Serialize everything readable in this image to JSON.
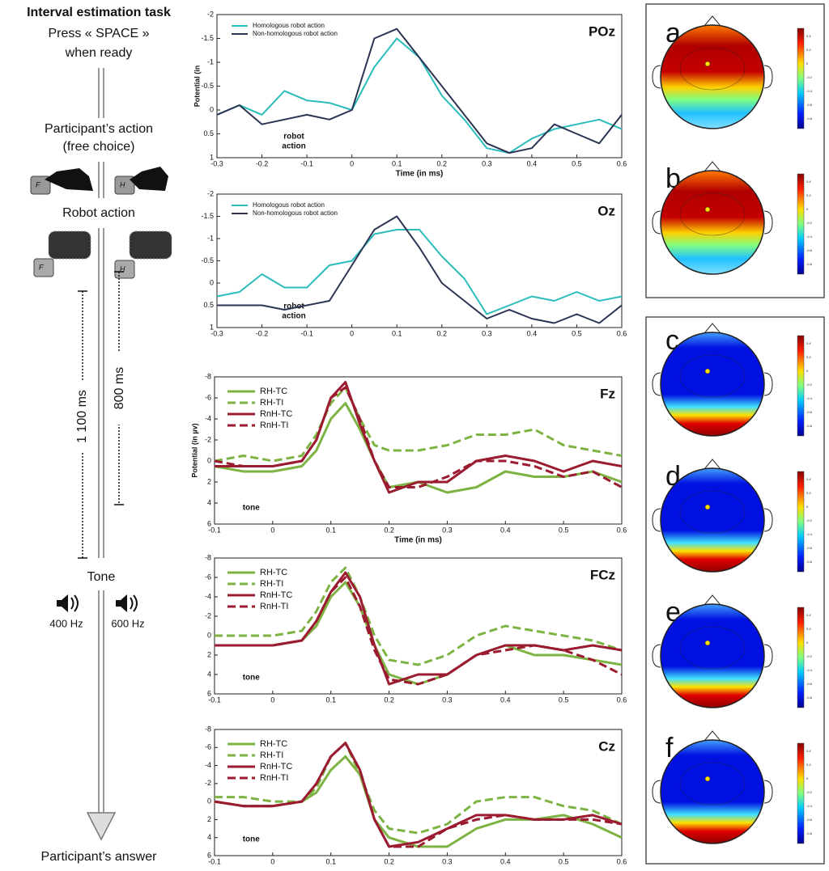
{
  "protocol": {
    "title": "Interval estimation task",
    "start": [
      "Press « SPACE »",
      "when ready"
    ],
    "action": [
      "Participant’s action",
      "(free choice)"
    ],
    "robot": "Robot action",
    "keys": [
      "F",
      "H"
    ],
    "durations": [
      "1 100 ms",
      "800 ms"
    ],
    "tone": "Tone",
    "frequencies": [
      "400 Hz",
      "600 Hz"
    ],
    "answer": "Participant’s answer"
  },
  "chart_data": [
    {
      "type": "line",
      "channel": "POz",
      "ylabel": "Potential (in",
      "xlabel": "Time (in ms)",
      "annotation": [
        "robot",
        "action"
      ],
      "y_inverted": true,
      "x": [
        -0.3,
        -0.25,
        -0.2,
        -0.15,
        -0.1,
        -0.05,
        0,
        0.05,
        0.1,
        0.15,
        0.2,
        0.25,
        0.3,
        0.35,
        0.4,
        0.45,
        0.5,
        0.55,
        0.6
      ],
      "xlim": [
        -0.3,
        0.6
      ],
      "xticks": [
        -0.3,
        -0.2,
        -0.1,
        0,
        0.1,
        0.2,
        0.3,
        0.4,
        0.5,
        0.6
      ],
      "ylim": [
        -2,
        1
      ],
      "yticks": [
        -2,
        -1.5,
        -1,
        -0.5,
        0,
        0.5,
        1
      ],
      "series": [
        {
          "name": "Homologous robot action",
          "color": "#2bbcbc",
          "dashed": false,
          "values": [
            0.1,
            -0.1,
            0.1,
            -0.4,
            -0.2,
            -0.15,
            0,
            -0.9,
            -1.5,
            -1.1,
            -0.3,
            0.2,
            0.8,
            0.9,
            0.6,
            0.4,
            0.3,
            0.2,
            0.4
          ]
        },
        {
          "name": "Non-homologous robot action",
          "color": "#2b3553",
          "dashed": false,
          "values": [
            0.1,
            -0.1,
            0.3,
            0.2,
            0.1,
            0.2,
            0,
            -1.5,
            -1.7,
            -1.1,
            -0.5,
            0.1,
            0.7,
            0.9,
            0.8,
            0.3,
            0.5,
            0.7,
            0.1
          ]
        }
      ]
    },
    {
      "type": "line",
      "channel": "Oz",
      "annotation": [
        "robot",
        "action"
      ],
      "y_inverted": true,
      "x": [
        -0.3,
        -0.25,
        -0.2,
        -0.15,
        -0.1,
        -0.05,
        0,
        0.05,
        0.1,
        0.15,
        0.2,
        0.25,
        0.3,
        0.35,
        0.4,
        0.45,
        0.5,
        0.55,
        0.6
      ],
      "xlim": [
        -0.3,
        0.6
      ],
      "xticks": [
        -0.3,
        -0.2,
        -0.1,
        0,
        0.1,
        0.2,
        0.3,
        0.4,
        0.5,
        0.6
      ],
      "ylim": [
        -2,
        1
      ],
      "yticks": [
        -2,
        -1.5,
        -1,
        -0.5,
        0,
        0.5,
        1
      ],
      "series": [
        {
          "name": "Homologous robot action",
          "color": "#2bbcbc",
          "dashed": false,
          "values": [
            0.3,
            0.2,
            -0.2,
            0.1,
            0.1,
            -0.4,
            -0.5,
            -1.1,
            -1.2,
            -1.2,
            -0.6,
            -0.1,
            0.7,
            0.5,
            0.3,
            0.4,
            0.2,
            0.4,
            0.3
          ]
        },
        {
          "name": "Non-homologous robot action",
          "color": "#2b3553",
          "dashed": false,
          "values": [
            0.5,
            0.5,
            0.5,
            0.6,
            0.5,
            0.4,
            -0.4,
            -1.2,
            -1.5,
            -0.8,
            0,
            0.4,
            0.8,
            0.6,
            0.8,
            0.9,
            0.7,
            0.9,
            0.5
          ]
        }
      ]
    },
    {
      "type": "line",
      "channel": "Fz",
      "ylabel": "Potential (in µv)",
      "xlabel": "Time (in ms)",
      "annotation": [
        "tone"
      ],
      "y_inverted": true,
      "x": [
        -0.1,
        -0.05,
        0,
        0.05,
        0.075,
        0.1,
        0.125,
        0.15,
        0.175,
        0.2,
        0.25,
        0.3,
        0.35,
        0.4,
        0.45,
        0.5,
        0.55,
        0.6
      ],
      "xlim": [
        -0.1,
        0.6
      ],
      "xticks": [
        -0.1,
        0,
        0.1,
        0.2,
        0.3,
        0.4,
        0.5,
        0.6
      ],
      "ylim": [
        -8,
        6
      ],
      "yticks": [
        -8,
        -6,
        -4,
        -2,
        0,
        2,
        4,
        6
      ],
      "series": [
        {
          "name": "RH-TC",
          "color": "#7cb342",
          "dashed": false,
          "values": [
            0.5,
            1,
            1,
            0.5,
            -1,
            -4,
            -5.5,
            -3,
            0,
            2.5,
            2,
            3,
            2.5,
            1,
            1.5,
            1.5,
            1,
            2
          ]
        },
        {
          "name": "RH-TI",
          "color": "#7cb342",
          "dashed": true,
          "values": [
            0,
            -0.5,
            0,
            -0.5,
            -2.5,
            -5.5,
            -7,
            -4,
            -1.5,
            -1,
            -1,
            -1.5,
            -2.5,
            -2.5,
            -3,
            -1.5,
            -1,
            -0.5
          ]
        },
        {
          "name": "RnH-TC",
          "color": "#9b1b30",
          "dashed": false,
          "values": [
            0.5,
            0.5,
            0.5,
            0,
            -2,
            -6,
            -7.5,
            -3.5,
            0,
            3,
            2,
            2,
            0,
            -0.5,
            0,
            1,
            0,
            0.5
          ]
        },
        {
          "name": "RnH-TI",
          "color": "#9b1b30",
          "dashed": true,
          "values": [
            0,
            0.5,
            0.5,
            0,
            -2,
            -6,
            -7,
            -4,
            0,
            2.5,
            2.5,
            1.5,
            0,
            0,
            0.5,
            1.5,
            1,
            2.5
          ]
        }
      ]
    },
    {
      "type": "line",
      "channel": "FCz",
      "annotation": [
        "tone"
      ],
      "y_inverted": true,
      "x": [
        -0.1,
        -0.05,
        0,
        0.05,
        0.075,
        0.1,
        0.125,
        0.15,
        0.175,
        0.2,
        0.25,
        0.3,
        0.35,
        0.4,
        0.45,
        0.5,
        0.55,
        0.6
      ],
      "xlim": [
        -0.1,
        0.6
      ],
      "xticks": [
        -0.1,
        0,
        0.1,
        0.2,
        0.3,
        0.4,
        0.5,
        0.6
      ],
      "ylim": [
        -8,
        6
      ],
      "yticks": [
        -8,
        -6,
        -4,
        -2,
        0,
        2,
        4,
        6
      ],
      "series": [
        {
          "name": "RH-TC",
          "color": "#7cb342",
          "dashed": false,
          "values": [
            1,
            1,
            1,
            0.5,
            -1,
            -4,
            -5.5,
            -3,
            1,
            4,
            5,
            4,
            2,
            1,
            2,
            2,
            2.5,
            3
          ]
        },
        {
          "name": "RH-TI",
          "color": "#7cb342",
          "dashed": true,
          "values": [
            0,
            0,
            0,
            -0.5,
            -2.5,
            -5.5,
            -7,
            -4,
            0,
            2.5,
            3,
            2,
            0,
            -1,
            -0.5,
            0,
            0.5,
            1.5
          ]
        },
        {
          "name": "RnH-TC",
          "color": "#9b1b30",
          "dashed": false,
          "values": [
            1,
            1,
            1,
            0.5,
            -1.5,
            -4.5,
            -6.5,
            -4,
            1,
            5,
            4,
            4,
            2,
            1,
            1,
            1.5,
            1,
            1.5
          ]
        },
        {
          "name": "RnH-TI",
          "color": "#9b1b30",
          "dashed": true,
          "values": [
            1,
            1,
            1,
            0.5,
            -1.5,
            -4.5,
            -6,
            -3,
            1.5,
            4.5,
            5,
            4,
            2,
            1.5,
            1,
            1.5,
            2.5,
            4
          ]
        }
      ]
    },
    {
      "type": "line",
      "channel": "Cz",
      "annotation": [
        "tone"
      ],
      "y_inverted": true,
      "x": [
        -0.1,
        -0.05,
        0,
        0.05,
        0.075,
        0.1,
        0.125,
        0.15,
        0.175,
        0.2,
        0.25,
        0.3,
        0.35,
        0.4,
        0.45,
        0.5,
        0.55,
        0.6
      ],
      "xlim": [
        -0.1,
        0.6
      ],
      "xticks": [
        -0.1,
        0,
        0.1,
        0.2,
        0.3,
        0.4,
        0.5,
        0.6
      ],
      "ylim": [
        -8,
        6
      ],
      "yticks": [
        -8,
        -6,
        -4,
        -2,
        0,
        2,
        4,
        6
      ],
      "series": [
        {
          "name": "RH-TC",
          "color": "#7cb342",
          "dashed": false,
          "values": [
            0,
            0.5,
            0.5,
            0,
            -1,
            -3.5,
            -5,
            -3,
            2,
            4,
            5,
            5,
            3,
            2,
            2,
            1.5,
            2.5,
            4
          ]
        },
        {
          "name": "RH-TI",
          "color": "#7cb342",
          "dashed": true,
          "values": [
            -0.5,
            -0.5,
            0,
            0,
            -1.5,
            -5,
            -6.5,
            -3,
            1,
            3,
            3.5,
            2.5,
            0,
            -0.5,
            -0.5,
            0.5,
            1,
            2.5
          ]
        },
        {
          "name": "RnH-TC",
          "color": "#9b1b30",
          "dashed": false,
          "values": [
            0,
            0.5,
            0.5,
            0,
            -2,
            -5,
            -6.5,
            -3.5,
            2,
            5,
            4.5,
            3,
            1.5,
            1.5,
            2,
            2,
            1.5,
            2.5
          ]
        },
        {
          "name": "RnH-TI",
          "color": "#9b1b30",
          "dashed": true,
          "values": [
            0,
            0.5,
            0.5,
            0,
            -2,
            -5,
            -6.5,
            -3.5,
            2,
            5,
            5,
            3,
            2,
            1.5,
            2,
            2,
            2,
            2.5
          ]
        }
      ]
    }
  ],
  "topomaps": {
    "panels": [
      "a",
      "b",
      "c",
      "d",
      "e",
      "f"
    ],
    "colorbar_ticks": [
      "0.4",
      "0.2",
      "0",
      "-0.2",
      "-0.4",
      "-0.6",
      "-0.8"
    ]
  }
}
